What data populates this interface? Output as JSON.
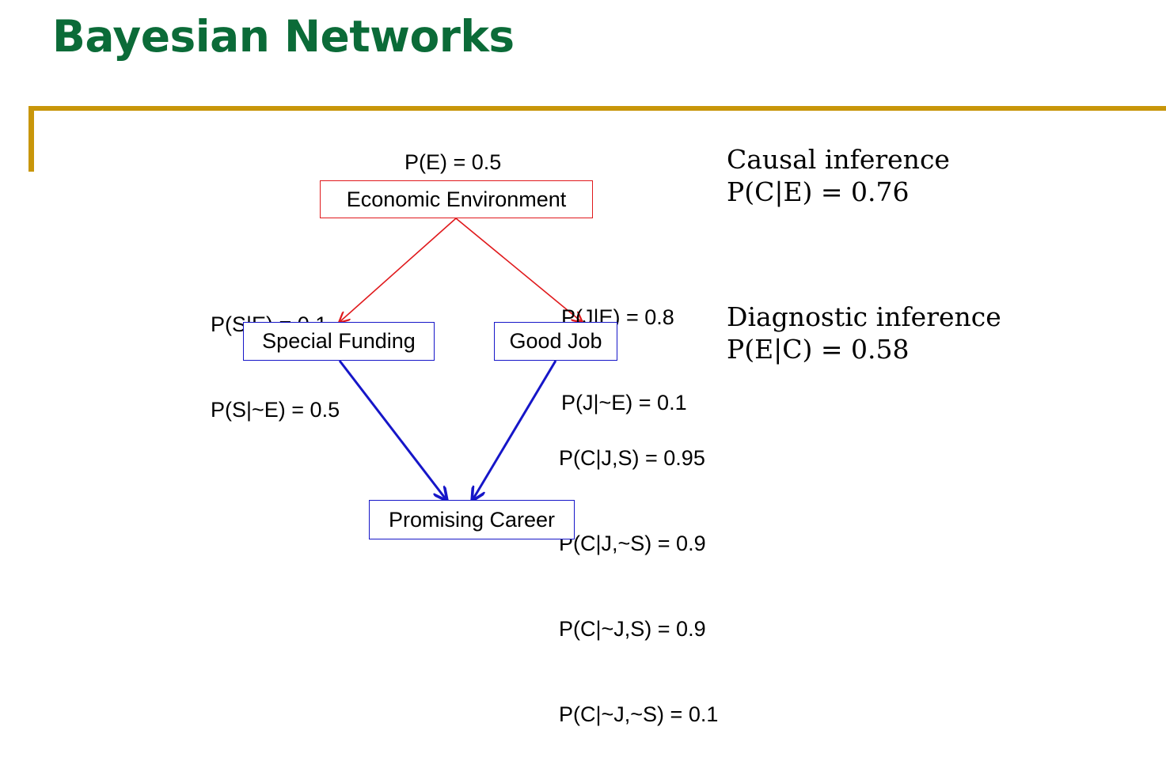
{
  "title": "Bayesian Networks",
  "colors": {
    "title": "#0b6b38",
    "rule": "#c8960a",
    "edge_top": "#e0191c",
    "edge_bottom": "#1616c8"
  },
  "nodes": {
    "economic_environment": "Economic  Environment",
    "special_funding": "Special Funding",
    "good_job": "Good Job",
    "promising_career": "Promising Career"
  },
  "probabilities": {
    "prior_e": "P(E) = 0.5",
    "s_given_e": [
      "P(S|E) = 0.1",
      "P(S|~E) = 0.5"
    ],
    "j_given_e": [
      "P(J|E) = 0.8",
      "P(J|~E) = 0.1"
    ],
    "c_given_js": [
      "P(C|J,S) = 0.95",
      "P(C|J,~S) = 0.9",
      "P(C|~J,S) = 0.9",
      "P(C|~J,~S) = 0.1"
    ]
  },
  "inference": {
    "causal": {
      "heading": "Causal inference",
      "value": "P(C|E) = 0.76"
    },
    "diagnostic": {
      "heading": "Diagnostic inference",
      "value": "P(E|C) = 0.58"
    }
  }
}
